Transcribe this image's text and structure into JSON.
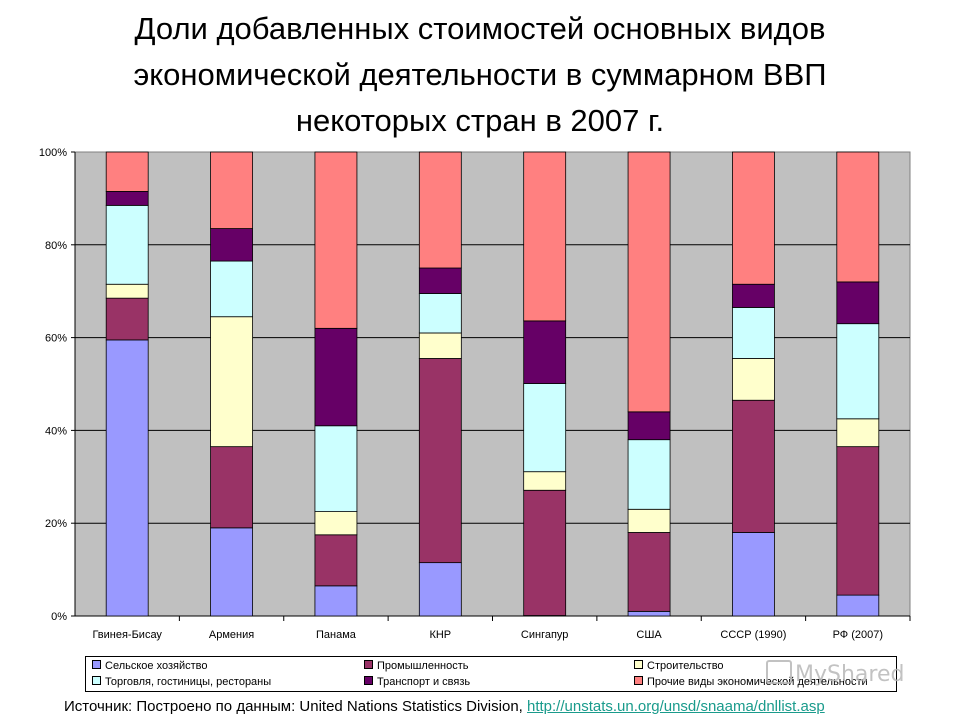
{
  "title": {
    "line1": "Доли добавленных стоимостей основных видов",
    "line2": "экономической деятельности в суммарном ВВП",
    "line3": "некоторых стран в 2007 г."
  },
  "source": {
    "prefix": "Источник: Построено по данным: United Nations Statistics Division, ",
    "link": "http://unstats.un.org/unsd/snaama/dnllist.asp"
  },
  "watermark": "MyShared",
  "colors": {
    "plot_bg": "#c0c0c0",
    "link": "#1a9b8c"
  },
  "chart_data": {
    "type": "bar",
    "stacked": true,
    "percent": true,
    "categories": [
      "Гвинея-Бисау",
      "Армения",
      "Панама",
      "КНР",
      "Сингапур",
      "США",
      "СССР (1990)",
      "РФ (2007)"
    ],
    "y_ticks": [
      "0%",
      "20%",
      "40%",
      "60%",
      "80%",
      "100%"
    ],
    "ylim": [
      0,
      100
    ],
    "grid": true,
    "legend_position": "bottom",
    "series": [
      {
        "name": "Сельское хозяйство",
        "color": "#9999ff",
        "values": [
          59.5,
          19.0,
          6.5,
          11.5,
          0.1,
          1.0,
          18.0,
          4.5
        ]
      },
      {
        "name": "Промышленность",
        "color": "#993366",
        "values": [
          9.0,
          17.5,
          11.0,
          44.0,
          27.0,
          17.0,
          28.5,
          32.0
        ]
      },
      {
        "name": "Строительство",
        "color": "#ffffcc",
        "values": [
          3.0,
          28.0,
          5.0,
          5.5,
          4.0,
          5.0,
          9.0,
          6.0
        ]
      },
      {
        "name": "Торговля, гостиницы, рестораны",
        "color": "#ccffff",
        "values": [
          17.0,
          12.0,
          18.5,
          8.5,
          19.0,
          15.0,
          11.0,
          20.5
        ]
      },
      {
        "name": "Транспорт и связь",
        "color": "#660066",
        "values": [
          3.0,
          7.0,
          21.0,
          5.5,
          13.5,
          6.0,
          5.0,
          9.0
        ]
      },
      {
        "name": "Прочие виды экономической деятельности",
        "color": "#ff8080",
        "values": [
          8.5,
          16.5,
          38.0,
          25.0,
          36.4,
          56.0,
          28.5,
          28.0
        ]
      }
    ]
  }
}
